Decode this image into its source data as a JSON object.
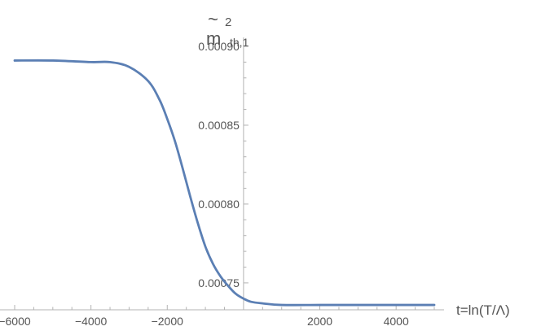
{
  "chart_data": {
    "type": "line",
    "title": "",
    "xlabel": "t=ln(T/Λ)",
    "ylabel": {
      "base": "m",
      "accent": "~",
      "superscript": "2",
      "subscript": "th,1"
    },
    "xlim": [
      -6000,
      5000
    ],
    "ylim": [
      0.000735,
      0.0009
    ],
    "x_ticks": [
      -6000,
      -4000,
      -2000,
      2000,
      4000
    ],
    "x_tick_labels": [
      "−6000",
      "−4000",
      "−2000",
      "2000",
      "4000"
    ],
    "y_ticks": [
      0.00075,
      0.0008,
      0.00085,
      0.0009
    ],
    "y_tick_labels": [
      "0.00075",
      "0.00080",
      "0.00085",
      "0.00090"
    ],
    "grid": false,
    "line_color": "#5b7fb4",
    "axis_color": "#b3b3b3",
    "series": [
      {
        "name": "",
        "x": [
          -6000,
          -5000,
          -4000,
          -3500,
          -3000,
          -2500,
          -2200,
          -2000,
          -1800,
          -1600,
          -1400,
          -1200,
          -1000,
          -800,
          -600,
          -400,
          -200,
          0,
          200,
          500,
          1000,
          2000,
          3000,
          4000,
          5000
        ],
        "y": [
          0.000891,
          0.000891,
          0.00089,
          0.00089,
          0.000887,
          0.000878,
          0.000866,
          0.000854,
          0.00084,
          0.000823,
          0.000805,
          0.000788,
          0.000773,
          0.000762,
          0.000754,
          0.000748,
          0.000743,
          0.00074,
          0.000738,
          0.000737,
          0.000736,
          0.000736,
          0.000736,
          0.000736,
          0.000736
        ]
      }
    ]
  }
}
